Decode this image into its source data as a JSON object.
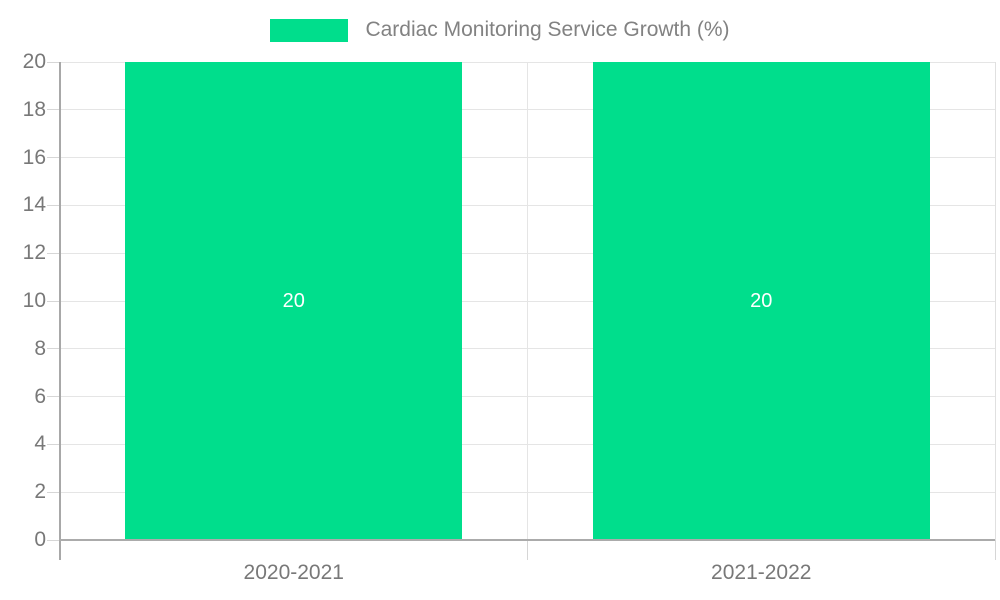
{
  "chart_data": {
    "type": "bar",
    "title": "Cardiac Monitoring Service Growth (%)",
    "categories": [
      "2020-2021",
      "2021-2022"
    ],
    "values": [
      20,
      20
    ],
    "bar_labels": [
      "20",
      "20"
    ],
    "xlabel": "",
    "ylabel": "",
    "ylim": [
      0,
      20
    ],
    "yticks": [
      0,
      2,
      4,
      6,
      8,
      10,
      12,
      14,
      16,
      18,
      20
    ],
    "grid": true,
    "legend_position": "top-center",
    "legend_entries": [
      "Cardiac Monitoring Service Growth (%)"
    ],
    "colors": {
      "bar": "#00DE8C",
      "grid": "#e5e5e5",
      "tick": "#d6d6d6",
      "axis_y": "#a8a8a8",
      "axis_x": "#ababab",
      "right_border": "#e0e0e0",
      "text": "#787878",
      "title_text": "#828282",
      "bar_label_text": "#ffffff",
      "background": "#ffffff"
    }
  }
}
